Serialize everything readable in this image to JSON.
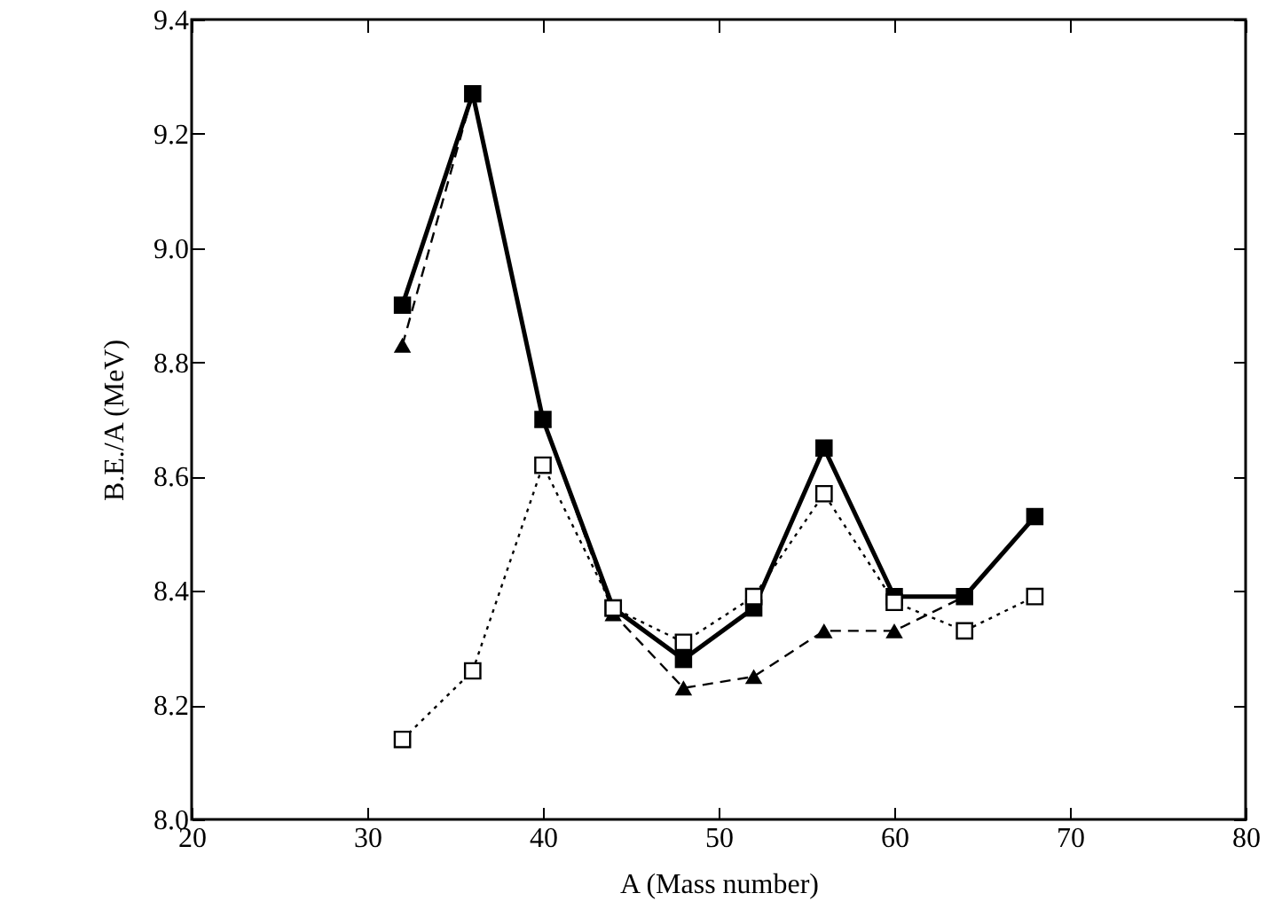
{
  "chart_data": {
    "type": "line",
    "xlabel": "A (Mass number)",
    "ylabel": "B.E./A (MeV)",
    "x": [
      32,
      36,
      40,
      44,
      48,
      52,
      56,
      60,
      64,
      68
    ],
    "series": [
      {
        "color": "#000000",
        "line_style": "solid",
        "marker": "square",
        "values": [
          8.9,
          9.27,
          8.7,
          8.37,
          8.28,
          8.37,
          8.65,
          8.39,
          8.39,
          8.53
        ]
      },
      {
        "color": "#000000",
        "line_style": "dashed",
        "marker": "triangle",
        "values": [
          8.83,
          9.27,
          8.7,
          8.36,
          8.23,
          8.25,
          8.33,
          8.33,
          8.39,
          null
        ]
      },
      {
        "color": "#000000",
        "line_style": "dotted",
        "marker": "square",
        "values": [
          8.14,
          8.26,
          8.62,
          8.37,
          8.31,
          8.39,
          8.57,
          8.38,
          8.33,
          8.39
        ]
      }
    ],
    "xlim": [
      20,
      80
    ],
    "xticks": [
      20,
      30,
      40,
      50,
      60,
      70,
      80
    ],
    "ylim": [
      8.0,
      9.4
    ],
    "yticks": [
      {
        "value": 8.0,
        "label": "8.0"
      },
      8.2,
      8.4,
      8.6,
      8.8,
      {
        "value": 9.0,
        "label": "9.0"
      },
      9.2,
      9.4
    ],
    "grid": false
  }
}
